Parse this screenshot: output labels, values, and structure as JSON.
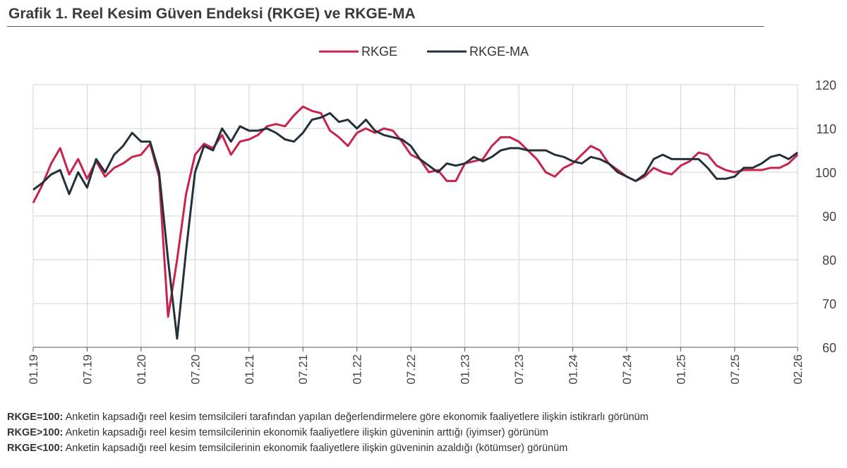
{
  "title": "Grafik 1. Reel Kesim Güven Endeksi (RKGE) ve RKGE-MA",
  "colors": {
    "rkge": "#c8234a",
    "rkge_ma": "#22313a",
    "grid": "#d3d3d3",
    "axis": "#555555"
  },
  "chart_data": {
    "type": "line",
    "title": "",
    "xlabel": "",
    "ylabel": "",
    "ylim": [
      60,
      120
    ],
    "yticks": [
      60,
      70,
      80,
      90,
      100,
      110,
      120
    ],
    "y_axis_side": "right",
    "grid": {
      "vertical": true,
      "horizontal": true
    },
    "legend": {
      "position": "top-center",
      "entries": [
        "RKGE",
        "RKGE-MA"
      ]
    },
    "x_tick_labels": [
      "01.19",
      "07.19",
      "01.20",
      "07.20",
      "01.21",
      "07.21",
      "01.22",
      "07.22",
      "01.23",
      "07.23",
      "01.24",
      "07.24",
      "01.25",
      "07.25",
      "02.26"
    ],
    "x_tick_index": [
      0,
      6,
      12,
      18,
      24,
      30,
      36,
      42,
      48,
      54,
      60,
      66,
      72,
      78,
      85
    ],
    "x": [
      "01.19",
      "02.19",
      "03.19",
      "04.19",
      "05.19",
      "06.19",
      "07.19",
      "08.19",
      "09.19",
      "10.19",
      "11.19",
      "12.19",
      "01.20",
      "02.20",
      "03.20",
      "04.20",
      "05.20",
      "06.20",
      "07.20",
      "08.20",
      "09.20",
      "10.20",
      "11.20",
      "12.20",
      "01.21",
      "02.21",
      "03.21",
      "04.21",
      "05.21",
      "06.21",
      "07.21",
      "08.21",
      "09.21",
      "10.21",
      "11.21",
      "12.21",
      "01.22",
      "02.22",
      "03.22",
      "04.22",
      "05.22",
      "06.22",
      "07.22",
      "08.22",
      "09.22",
      "10.22",
      "11.22",
      "12.22",
      "01.23",
      "02.23",
      "03.23",
      "04.23",
      "05.23",
      "06.23",
      "07.23",
      "08.23",
      "09.23",
      "10.23",
      "11.23",
      "12.23",
      "01.24",
      "02.24",
      "03.24",
      "04.24",
      "05.24",
      "06.24",
      "07.24",
      "08.24",
      "09.24",
      "10.24",
      "11.24",
      "12.24",
      "01.25",
      "02.25",
      "03.25",
      "04.25",
      "05.25",
      "06.25",
      "07.25",
      "08.25",
      "09.25",
      "10.25",
      "11.25",
      "12.25",
      "01.26",
      "02.26"
    ],
    "series": [
      {
        "name": "RKGE",
        "color": "#c8234a",
        "values": [
          93,
          97,
          102,
          105.5,
          99.5,
          103,
          98.5,
          102.5,
          99,
          101,
          102,
          103.5,
          104,
          106.5,
          99,
          67,
          80,
          95,
          104,
          106.5,
          105.5,
          108.5,
          104,
          107,
          107.5,
          108.5,
          110.5,
          111,
          110.5,
          113,
          115,
          114,
          113.5,
          109.5,
          108,
          106,
          109,
          110,
          109,
          110,
          109.5,
          107,
          104,
          103,
          100,
          100.5,
          98,
          98,
          102,
          102.5,
          103,
          106,
          108,
          108,
          107,
          105,
          103,
          100,
          99,
          101,
          102,
          104,
          106,
          105,
          102,
          100.5,
          99,
          98,
          99,
          101,
          100,
          99.5,
          101.5,
          102.5,
          104.5,
          104,
          101.5,
          100.5,
          100,
          100.5,
          100.5,
          100.5,
          101,
          101,
          102,
          104
        ]
      },
      {
        "name": "RKGE-MA",
        "color": "#22313a",
        "values": [
          96,
          97.5,
          99.5,
          100.5,
          95,
          100,
          96.5,
          103,
          100,
          104,
          106,
          109,
          107,
          107,
          100,
          80,
          62,
          82,
          100,
          106,
          105,
          110,
          107,
          110.5,
          109.5,
          109.5,
          110,
          109,
          107.5,
          107,
          109,
          112,
          112.5,
          113.5,
          111.5,
          112,
          110,
          112,
          109.5,
          108.5,
          108,
          107.5,
          106,
          103,
          101.5,
          100,
          102,
          101.5,
          102,
          103.5,
          102.5,
          103.5,
          105,
          105.5,
          105.5,
          105,
          105,
          105,
          104,
          103.5,
          102.5,
          102,
          103.5,
          103,
          102,
          100,
          99,
          98,
          99.5,
          103,
          104,
          103,
          103,
          103,
          103,
          101,
          98.5,
          98.5,
          99,
          101,
          101,
          102,
          103.5,
          104,
          103,
          104.5
        ]
      }
    ]
  },
  "notes": [
    {
      "term": "RKGE=100:",
      "text": " Anketin kapsadığı reel kesim temsilcileri tarafından yapılan değerlendirmelere göre ekonomik faaliyetlere ilişkin istikrarlı görünüm"
    },
    {
      "term": "RKGE>100:",
      "text": " Anketin kapsadığı reel kesim temsilcilerinin ekonomik faaliyetlere ilişkin güveninin arttığı (iyimser) görünüm"
    },
    {
      "term": "RKGE<100:",
      "text": " Anketin kapsadığı reel kesim temsilcilerinin ekonomik faaliyetlere ilişkin güveninin azaldığı (kötümser) görünüm"
    }
  ]
}
